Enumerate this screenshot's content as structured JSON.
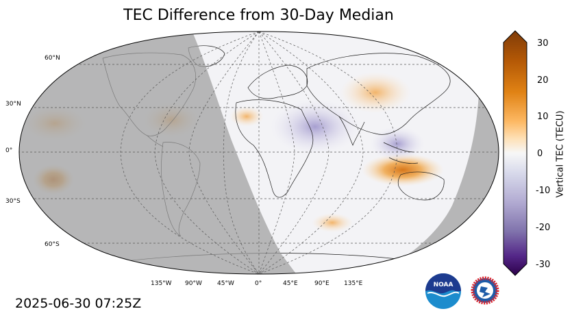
{
  "title": "TEC Difference from 30-Day Median",
  "timestamp": "2025-06-30 07:25Z",
  "colorbar": {
    "label": "Vertical TEC (TECU)",
    "ticks": [
      "30",
      "20",
      "10",
      "0",
      "-10",
      "-20",
      "-30"
    ],
    "range": [
      -30,
      30
    ],
    "top_color": "#7f3b08",
    "mid_color": "#f7f7f7",
    "bottom_color": "#2d004b"
  },
  "latitude_labels": [
    "60°N",
    "30°N",
    "0°",
    "30°S",
    "60°S"
  ],
  "longitude_labels": [
    "135°W",
    "90°W",
    "45°W",
    "0°",
    "45°E",
    "90°E",
    "135°E"
  ],
  "night_shade_color": "#9e9e9e",
  "logos": {
    "noaa_text": "NOAA",
    "nws_text": "NATIONAL WEATHER SERVICE"
  }
}
